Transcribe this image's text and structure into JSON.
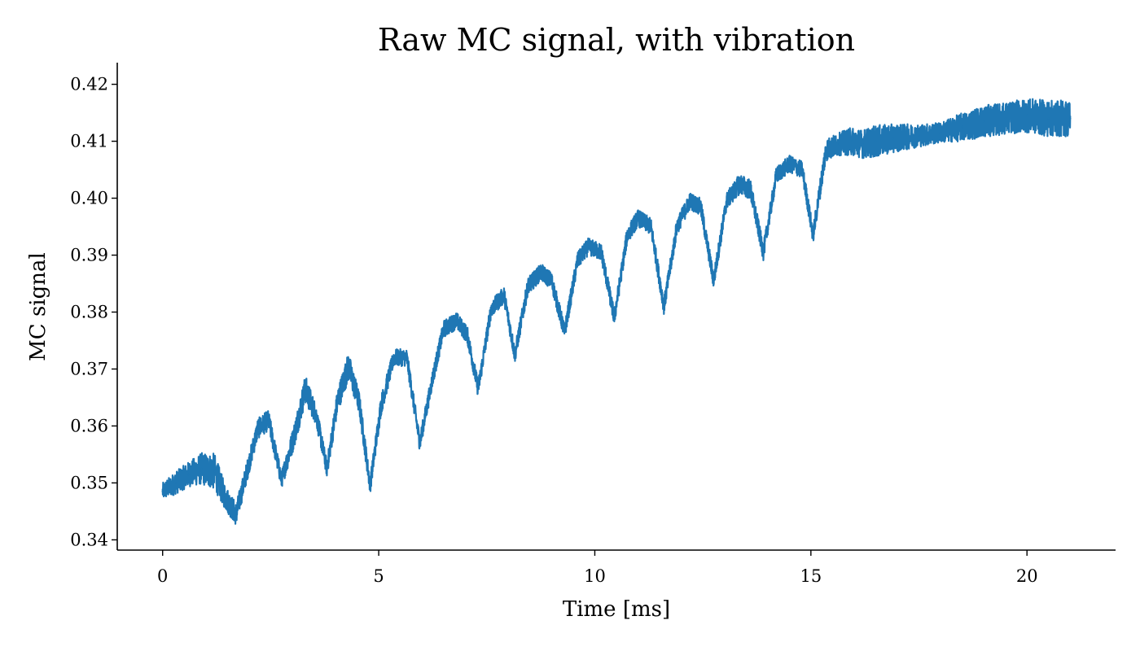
{
  "chart_data": {
    "type": "line",
    "title": "Raw MC signal, with vibration",
    "xlabel": "Time [ms]",
    "ylabel": "MC signal",
    "xlim": [
      -1.05,
      22.05
    ],
    "ylim": [
      0.3382,
      0.4238
    ],
    "xticks": [
      0,
      5,
      10,
      15,
      20
    ],
    "xtick_labels": [
      "0",
      "5",
      "10",
      "15",
      "20"
    ],
    "yticks": [
      0.34,
      0.35,
      0.36,
      0.37,
      0.38,
      0.39,
      0.4,
      0.41,
      0.42
    ],
    "ytick_labels": [
      "0.34",
      "0.35",
      "0.36",
      "0.37",
      "0.38",
      "0.39",
      "0.40",
      "0.41",
      "0.42"
    ],
    "grid": false,
    "series": [
      {
        "color": "#1f77b4",
        "x": [
          0.0,
          0.3,
          0.6,
          0.9,
          1.2,
          1.45,
          1.7,
          1.95,
          2.2,
          2.45,
          2.75,
          3.05,
          3.3,
          3.55,
          3.8,
          4.05,
          4.3,
          4.55,
          4.8,
          5.05,
          5.35,
          5.65,
          5.95,
          6.25,
          6.5,
          6.8,
          7.05,
          7.3,
          7.6,
          7.9,
          8.15,
          8.45,
          8.75,
          9.0,
          9.3,
          9.6,
          9.85,
          10.15,
          10.45,
          10.75,
          11.0,
          11.3,
          11.6,
          11.9,
          12.2,
          12.45,
          12.75,
          13.05,
          13.35,
          13.6,
          13.9,
          14.2,
          14.5,
          14.8,
          15.05,
          15.35,
          15.65,
          15.95,
          16.2,
          16.5,
          16.9,
          17.5,
          18.0,
          18.5,
          19.0,
          19.5,
          20.0,
          20.5,
          21.0
        ],
        "y": [
          0.3485,
          0.35,
          0.3515,
          0.3525,
          0.352,
          0.3475,
          0.3445,
          0.352,
          0.3595,
          0.361,
          0.3505,
          0.3585,
          0.3665,
          0.362,
          0.3525,
          0.3645,
          0.3705,
          0.364,
          0.3495,
          0.3635,
          0.372,
          0.372,
          0.357,
          0.3685,
          0.377,
          0.3785,
          0.376,
          0.3665,
          0.3805,
          0.383,
          0.3725,
          0.3845,
          0.387,
          0.3855,
          0.3765,
          0.389,
          0.3915,
          0.3905,
          0.379,
          0.3935,
          0.3965,
          0.395,
          0.381,
          0.395,
          0.3995,
          0.3985,
          0.3855,
          0.3995,
          0.4025,
          0.4015,
          0.3905,
          0.404,
          0.406,
          0.405,
          0.3935,
          0.4085,
          0.4095,
          0.41,
          0.4095,
          0.41,
          0.4105,
          0.411,
          0.4115,
          0.4125,
          0.4135,
          0.414,
          0.4145,
          0.414,
          0.414
        ],
        "noise_band": [
          0.0015,
          0.002,
          0.0022,
          0.0028,
          0.0032,
          0.0022,
          0.002,
          0.0018,
          0.0018,
          0.0018,
          0.0015,
          0.0022,
          0.0025,
          0.0018,
          0.0015,
          0.0022,
          0.0025,
          0.002,
          0.0015,
          0.0018,
          0.0015,
          0.0015,
          0.0015,
          0.0015,
          0.0015,
          0.0015,
          0.0015,
          0.0015,
          0.0015,
          0.0015,
          0.0015,
          0.0015,
          0.0015,
          0.0015,
          0.0015,
          0.0015,
          0.0015,
          0.0015,
          0.0015,
          0.0015,
          0.0015,
          0.0015,
          0.0015,
          0.0015,
          0.0015,
          0.0015,
          0.0015,
          0.0015,
          0.0018,
          0.0018,
          0.0015,
          0.0015,
          0.0015,
          0.0015,
          0.0015,
          0.002,
          0.002,
          0.0025,
          0.0025,
          0.0028,
          0.0025,
          0.002,
          0.0018,
          0.0025,
          0.0028,
          0.0028,
          0.003,
          0.0032,
          0.0032
        ]
      }
    ]
  }
}
